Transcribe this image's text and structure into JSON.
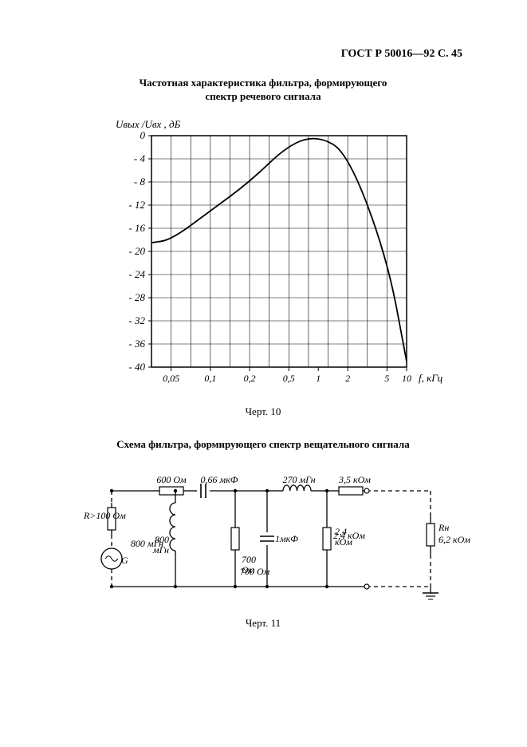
{
  "header": "ГОСТ Р 50016—92 С. 45",
  "chart": {
    "type": "line",
    "title_line1": "Частотная характеристика фильтра, формирующего",
    "title_line2": "спектр речевого сигнала",
    "ylabel": "Uвых /Uвх , дБ",
    "xlabel": "f, кГц",
    "xticks": [
      "0,05",
      "0,1",
      "0,2",
      "0,5",
      "1",
      "2",
      "5",
      "10"
    ],
    "ytick_min": -40,
    "ytick_max": 0,
    "ytick_step": 4,
    "yticks": [
      "0",
      "- 4",
      "- 8",
      "- 12",
      "- 16",
      "- 20",
      "- 24",
      "- 28",
      "- 32",
      "- 36",
      "- 40"
    ],
    "curve_x_log_decades": [
      -1.3,
      -1.0,
      -0.7,
      -0.3,
      0.0,
      0.3,
      0.7,
      1.0
    ],
    "curve_y_db": [
      -18,
      -13,
      -8,
      -1.5,
      0.0,
      -3,
      -21,
      -39
    ],
    "grid_color": "#000000",
    "line_color": "#000000",
    "line_width": 1.8,
    "background_color": "#ffffff",
    "fig_label": "Черт. 10"
  },
  "circuit": {
    "type": "schematic",
    "title": "Схема фильтра, формирующего спектр вещательного сигнала",
    "fig_label": "Черт. 11",
    "components": {
      "R_source": "R>100 Oм",
      "G": "G",
      "R1": "600 Oм",
      "C1": "0,66 мкФ",
      "L1": "800 мГн",
      "R2": "700 Ом",
      "C2": "1мкФ",
      "L2": "270 мГн",
      "R3": "3,5 кОм",
      "R4": "2,4 кОм",
      "R_load_label": "Rн",
      "R_load_val": "6,2 кОм"
    },
    "line_color": "#000000",
    "background_color": "#ffffff"
  }
}
